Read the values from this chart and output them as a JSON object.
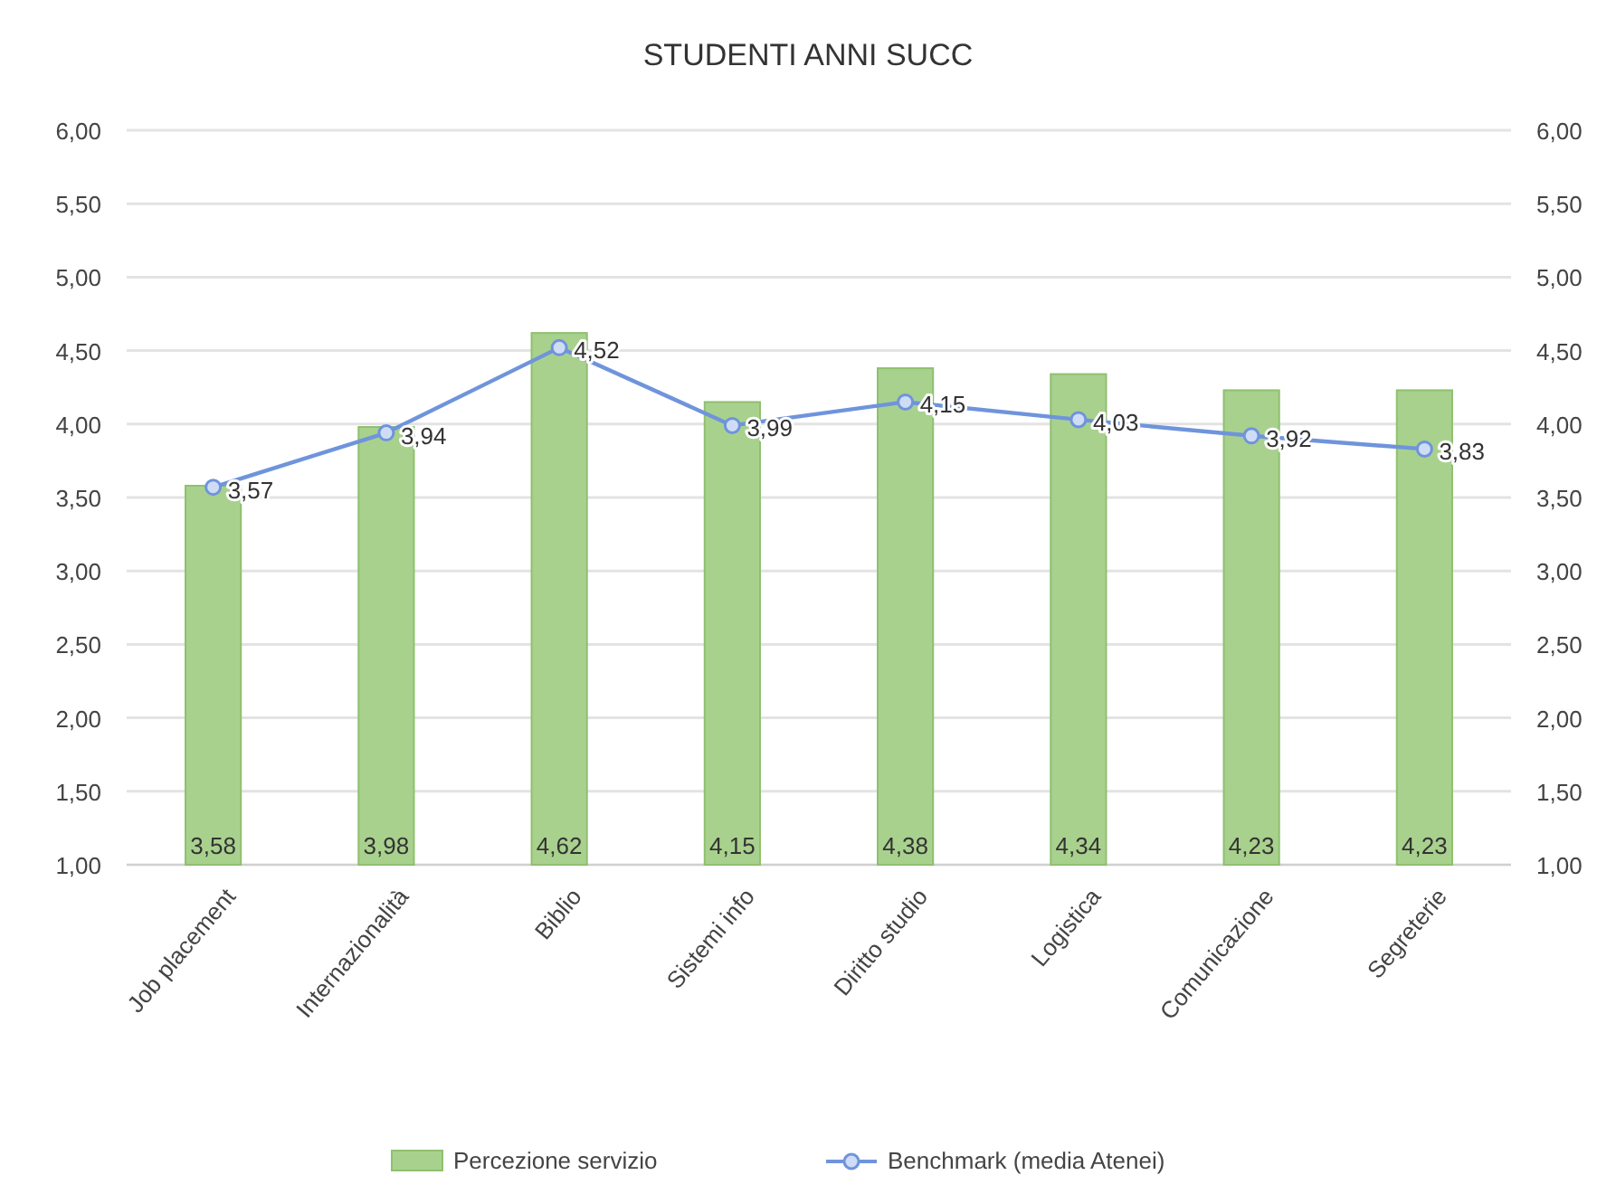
{
  "chart_data": {
    "type": "bar",
    "title": "STUDENTI ANNI SUCC",
    "categories": [
      "Job placement",
      "Internazionalità",
      "Biblio",
      "Sistemi info",
      "Diritto studio",
      "Logistica",
      "Comunicazione",
      "Segreterie"
    ],
    "series": [
      {
        "name": "Percezione servizio",
        "color": "#a9d18e",
        "values": [
          3.58,
          3.98,
          4.62,
          4.15,
          4.38,
          4.34,
          4.23,
          4.23
        ],
        "value_labels": [
          "3,58",
          "3,98",
          "4,62",
          "4,15",
          "4,38",
          "4,34",
          "4,23",
          "4,23"
        ]
      },
      {
        "name": "Benchmark (media Atenei)",
        "type": "line",
        "color": "#6f94dc",
        "marker": "circle",
        "values": [
          3.57,
          3.94,
          4.52,
          3.99,
          4.15,
          4.03,
          3.92,
          3.83
        ],
        "value_labels": [
          "3,57",
          "3,94",
          "4,52",
          "3,99",
          "4,15",
          "4,03",
          "3,92",
          "3,83"
        ]
      }
    ],
    "ylim": [
      1,
      6
    ],
    "yticks": [
      {
        "value": 1,
        "label": "1,00"
      },
      {
        "value": 1.5,
        "label": "1,50"
      },
      {
        "value": 2,
        "label": "2,00"
      },
      {
        "value": 2.5,
        "label": "2,50"
      },
      {
        "value": 3,
        "label": "3,00"
      },
      {
        "value": 3.5,
        "label": "3,50"
      },
      {
        "value": 4,
        "label": "4,00"
      },
      {
        "value": 4.5,
        "label": "4,50"
      },
      {
        "value": 5,
        "label": "5,00"
      },
      {
        "value": 5.5,
        "label": "5,50"
      },
      {
        "value": 6,
        "label": "6,00"
      }
    ],
    "y2lim": [
      1,
      6
    ],
    "y2ticks": [
      {
        "value": 1,
        "label": "1,00"
      },
      {
        "value": 1.5,
        "label": "1,50"
      },
      {
        "value": 2,
        "label": "2,00"
      },
      {
        "value": 2.5,
        "label": "2,50"
      },
      {
        "value": 3,
        "label": "3,00"
      },
      {
        "value": 3.5,
        "label": "3,50"
      },
      {
        "value": 4,
        "label": "4,00"
      },
      {
        "value": 4.5,
        "label": "4,50"
      },
      {
        "value": 5,
        "label": "5,00"
      },
      {
        "value": 5.5,
        "label": "5,50"
      },
      {
        "value": 6,
        "label": "6,00"
      }
    ],
    "grid": "y",
    "legend": "bottom"
  }
}
